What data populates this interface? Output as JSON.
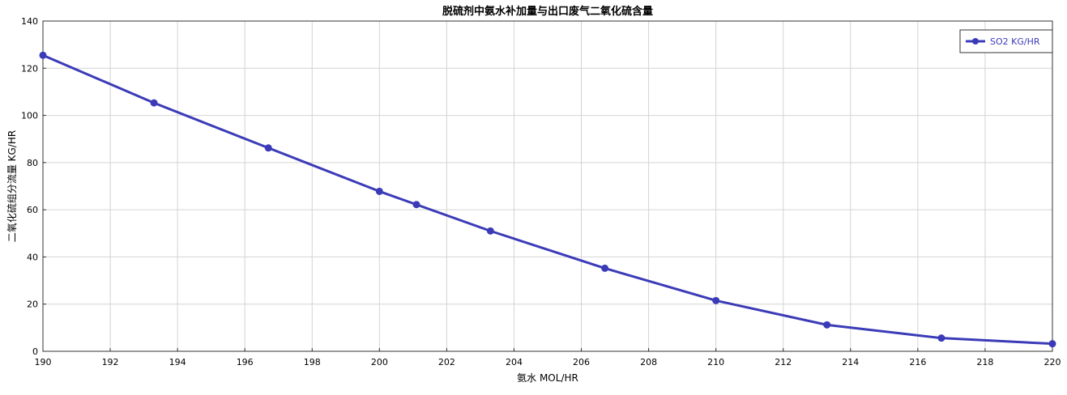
{
  "chart_data": {
    "type": "line",
    "title": "脱硫剂中氨水补加量与出口废气二氧化硫含量",
    "xlabel": "氨水 MOL/HR",
    "ylabel": "二氧化硫组分流量 KG/HR",
    "xlim": [
      190,
      220
    ],
    "ylim": [
      0,
      140
    ],
    "xticks": [
      190,
      192,
      194,
      196,
      198,
      200,
      202,
      204,
      206,
      208,
      210,
      212,
      214,
      216,
      218,
      220
    ],
    "yticks": [
      0,
      20,
      40,
      60,
      80,
      100,
      120,
      140
    ],
    "grid": true,
    "legend_position": "top-right",
    "series": [
      {
        "name": "SO2 KG/HR",
        "color": "#3b3bb8",
        "x": [
          190,
          193.3,
          196.7,
          200,
          201.1,
          203.3,
          206.7,
          210,
          213.3,
          216.7,
          220
        ],
        "y": [
          125.5,
          105.3,
          86.2,
          67.8,
          62.2,
          51.0,
          35.2,
          21.5,
          11.2,
          5.6,
          3.2
        ]
      }
    ]
  }
}
